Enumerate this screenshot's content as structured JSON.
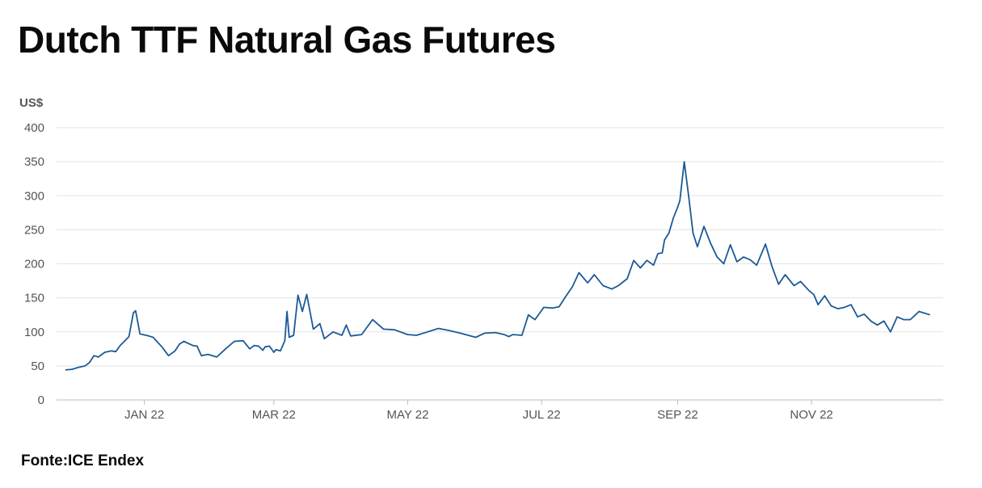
{
  "title": "Dutch TTF Natural Gas Futures",
  "source": "Fonte:ICE Endex",
  "chart_data": {
    "type": "line",
    "title": "Dutch TTF Natural Gas Futures",
    "ylabel": "US$",
    "xlabel": "",
    "ylim": [
      0,
      400
    ],
    "yticks": [
      0,
      50,
      100,
      150,
      200,
      250,
      300,
      350,
      400
    ],
    "xlim": [
      "2021-11-22",
      "2022-12-31"
    ],
    "xticks": [
      {
        "date": "2022-01-01",
        "label": "JAN 22"
      },
      {
        "date": "2022-03-01",
        "label": "MAR 22"
      },
      {
        "date": "2022-05-01",
        "label": "MAY 22"
      },
      {
        "date": "2022-07-01",
        "label": "JUL 22"
      },
      {
        "date": "2022-09-01",
        "label": "SEP 22"
      },
      {
        "date": "2022-11-01",
        "label": "NOV 22"
      }
    ],
    "grid": true,
    "line_color": "#1c5a96",
    "series": [
      {
        "name": "",
        "x": [
          "2021-11-26",
          "2021-11-29",
          "2021-12-02",
          "2021-12-05",
          "2021-12-07",
          "2021-12-09",
          "2021-12-11",
          "2021-12-14",
          "2021-12-17",
          "2021-12-19",
          "2021-12-21",
          "2021-12-25",
          "2021-12-27",
          "2021-12-28",
          "2021-12-30",
          "2022-01-03",
          "2022-01-05",
          "2022-01-09",
          "2022-01-12",
          "2022-01-15",
          "2022-01-17",
          "2022-01-19",
          "2022-01-23",
          "2022-01-25",
          "2022-01-27",
          "2022-01-30",
          "2022-02-01",
          "2022-02-03",
          "2022-02-07",
          "2022-02-11",
          "2022-02-15",
          "2022-02-18",
          "2022-02-20",
          "2022-02-22",
          "2022-02-24",
          "2022-02-25",
          "2022-02-27",
          "2022-03-01",
          "2022-03-02",
          "2022-03-04",
          "2022-03-06",
          "2022-03-07",
          "2022-03-08",
          "2022-03-10",
          "2022-03-12",
          "2022-03-14",
          "2022-03-16",
          "2022-03-19",
          "2022-03-22",
          "2022-03-24",
          "2022-03-28",
          "2022-04-01",
          "2022-04-03",
          "2022-04-05",
          "2022-04-10",
          "2022-04-15",
          "2022-04-20",
          "2022-04-25",
          "2022-05-01",
          "2022-05-05",
          "2022-05-10",
          "2022-05-15",
          "2022-05-20",
          "2022-05-25",
          "2022-06-01",
          "2022-06-05",
          "2022-06-10",
          "2022-06-14",
          "2022-06-16",
          "2022-06-18",
          "2022-06-22",
          "2022-06-25",
          "2022-06-28",
          "2022-07-02",
          "2022-07-06",
          "2022-07-09",
          "2022-07-12",
          "2022-07-15",
          "2022-07-18",
          "2022-07-22",
          "2022-07-25",
          "2022-07-29",
          "2022-08-02",
          "2022-08-05",
          "2022-08-09",
          "2022-08-12",
          "2022-08-15",
          "2022-08-18",
          "2022-08-21",
          "2022-08-23",
          "2022-08-25",
          "2022-08-26",
          "2022-08-28",
          "2022-08-30",
          "2022-09-01",
          "2022-09-02",
          "2022-09-04",
          "2022-09-06",
          "2022-09-08",
          "2022-09-10",
          "2022-09-13",
          "2022-09-16",
          "2022-09-19",
          "2022-09-22",
          "2022-09-25",
          "2022-09-28",
          "2022-10-01",
          "2022-10-04",
          "2022-10-07",
          "2022-10-11",
          "2022-10-14",
          "2022-10-17",
          "2022-10-20",
          "2022-10-24",
          "2022-10-27",
          "2022-10-31",
          "2022-11-02",
          "2022-11-04",
          "2022-11-07",
          "2022-11-10",
          "2022-11-13",
          "2022-11-16",
          "2022-11-19",
          "2022-11-22",
          "2022-11-25",
          "2022-11-28",
          "2022-12-01",
          "2022-12-04",
          "2022-12-07",
          "2022-12-10",
          "2022-12-13",
          "2022-12-16",
          "2022-12-20",
          "2022-12-25"
        ],
        "values": [
          44,
          45,
          48,
          50,
          55,
          65,
          63,
          70,
          72,
          71,
          80,
          93,
          128,
          131,
          97,
          94,
          92,
          78,
          65,
          72,
          82,
          86,
          80,
          79,
          65,
          67,
          65,
          63,
          75,
          86,
          87,
          75,
          80,
          79,
          73,
          78,
          79,
          70,
          74,
          72,
          87,
          130,
          92,
          95,
          154,
          130,
          155,
          104,
          112,
          90,
          100,
          95,
          110,
          94,
          96,
          118,
          104,
          103,
          96,
          95,
          100,
          105,
          102,
          98,
          92,
          98,
          99,
          96,
          93,
          96,
          95,
          125,
          118,
          136,
          135,
          137,
          152,
          166,
          187,
          172,
          184,
          168,
          163,
          168,
          178,
          205,
          194,
          205,
          198,
          215,
          216,
          235,
          245,
          267,
          283,
          293,
          350,
          300,
          245,
          225,
          255,
          230,
          210,
          200,
          228,
          203,
          210,
          206,
          198,
          229,
          196,
          170,
          184,
          168,
          174,
          160,
          155,
          140,
          153,
          138,
          134,
          136,
          140,
          122,
          126,
          116,
          110,
          116,
          100,
          122,
          118,
          118,
          130,
          125
        ],
        "dates_note": ""
      }
    ]
  }
}
